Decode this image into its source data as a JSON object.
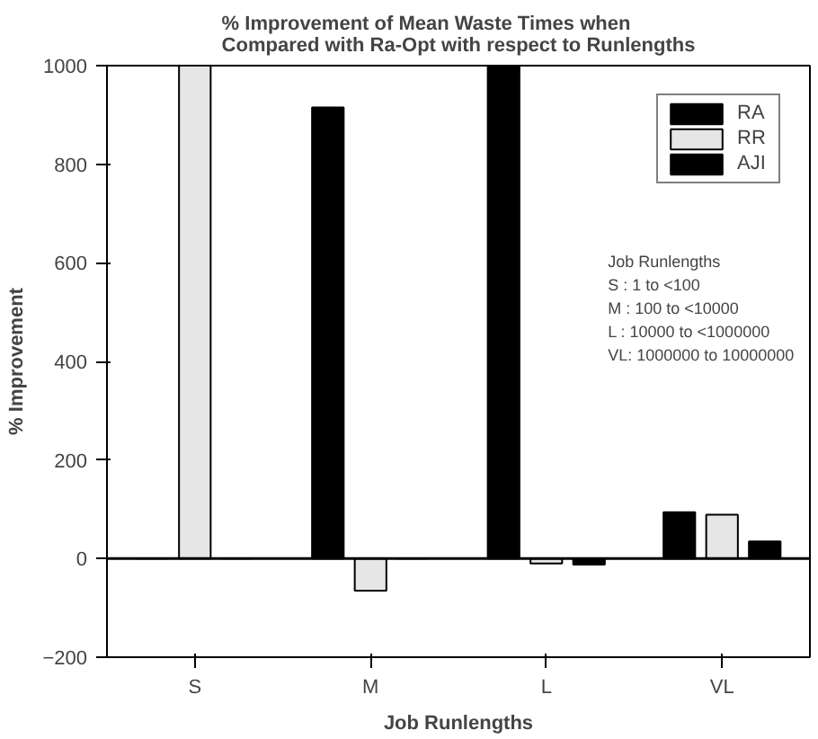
{
  "chart_data": {
    "type": "bar",
    "title": "% Improvement of Mean Waste Times when\nCompared with Ra-Opt with respect to Runlengths",
    "xlabel": "Job Runlengths",
    "ylabel": "% Improvement",
    "categories": [
      "S",
      "M",
      "L",
      "VL"
    ],
    "series": [
      {
        "name": "RA",
        "color": "#000000",
        "values": [
          0,
          915,
          1000,
          94
        ]
      },
      {
        "name": "RR",
        "color": "#e6e6e6",
        "values": [
          1000,
          -65,
          -10,
          89
        ]
      },
      {
        "name": "AJI",
        "color": "#000000",
        "values": [
          0,
          0,
          -12,
          35
        ]
      }
    ],
    "ylim": [
      -200,
      1000
    ],
    "yticks": [
      -200,
      0,
      200,
      400,
      600,
      800,
      1000
    ],
    "legend": "top right",
    "grid": false,
    "ref_lines": [
      {
        "axis": "y",
        "value": 0
      }
    ],
    "annotations": [
      "Job Runlengths\nS : 1 to <100\nM : 100 to <10000\nL : 10000 to <1000000\nVL: 1000000 to 10000000"
    ]
  }
}
